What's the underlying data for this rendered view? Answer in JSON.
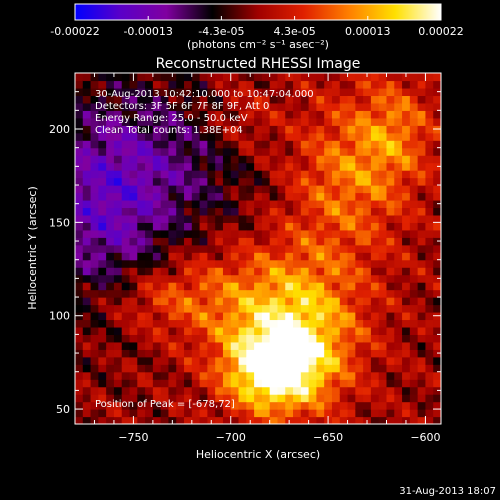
{
  "chart_data": {
    "type": "heatmap",
    "title": "Reconstructed RHESSI Image",
    "xlabel": "Heliocentric X (arcsec)",
    "ylabel": "Heliocentric Y (arcsec)",
    "xlim": [
      -780,
      -592
    ],
    "ylim": [
      42,
      230
    ],
    "x_ticks": [
      -750,
      -700,
      -650,
      -600
    ],
    "y_ticks": [
      50,
      100,
      150,
      200
    ],
    "colorbar": {
      "range": [
        -0.00022,
        0.00022
      ],
      "ticks": [
        "-0.00022",
        "-0.00013",
        "-4.3e-05",
        "4.3e-05",
        "0.00013",
        "0.00022"
      ],
      "units": "(photons cm⁻² s⁻¹ asec⁻²)",
      "colormap": [
        "#0000ff",
        "#5a00c8",
        "#8000a0",
        "#000000",
        "#a00000",
        "#e02000",
        "#ff8000",
        "#ffe000",
        "#ffffff"
      ]
    },
    "annotations": {
      "time": "30-Aug-2013 10:42:10.000 to 10:47:04.000",
      "detectors": "Detectors: 3F 5F 6F 7F 8F 9F, Att 0",
      "energy": "Energy Range: 25.0 - 50.0 keV",
      "clean": "Clean     Total counts: 1.38E+04",
      "peak": "Position of Peak = [-678,72]"
    },
    "peak_position": [
      -678,
      72
    ],
    "footer_date": "31-Aug-2013 18:07"
  }
}
